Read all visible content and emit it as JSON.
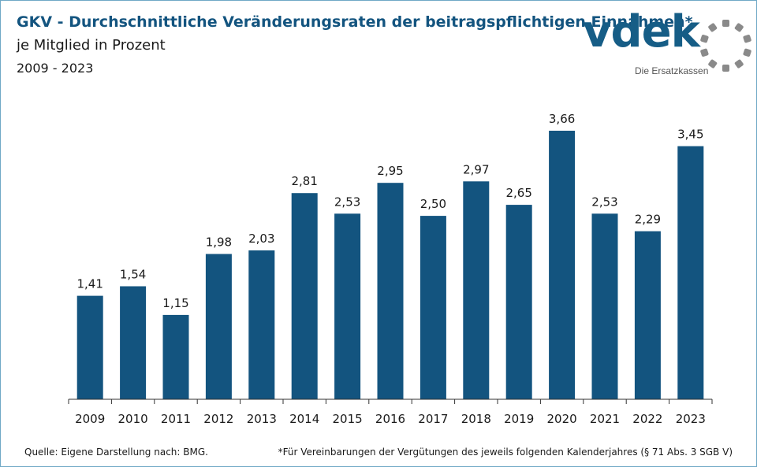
{
  "header": {
    "title": "GKV - Durchschnittliche Veränderungsraten der beitragspflichtigen Einnahmen*",
    "subtitle": "je Mitglied in Prozent",
    "period": "2009 - 2023"
  },
  "logo": {
    "wordmark": "vdek",
    "tagline": "Die Ersatzkassen",
    "icon": "dotted-ring-icon"
  },
  "chart_data": {
    "type": "bar",
    "categories": [
      "2009",
      "2010",
      "2011",
      "2012",
      "2013",
      "2014",
      "2015",
      "2016",
      "2017",
      "2018",
      "2019",
      "2020",
      "2021",
      "2022",
      "2023"
    ],
    "values": [
      1.41,
      1.54,
      1.15,
      1.98,
      2.03,
      2.81,
      2.53,
      2.95,
      2.5,
      2.97,
      2.65,
      3.66,
      2.53,
      2.29,
      3.45
    ],
    "value_labels": [
      "1,41",
      "1,54",
      "1,15",
      "1,98",
      "2,03",
      "2,81",
      "2,53",
      "2,95",
      "2,50",
      "2,97",
      "2,65",
      "3,66",
      "2,53",
      "2,29",
      "3,45"
    ],
    "ylim": [
      0,
      4
    ],
    "grid": false,
    "bar_color": "#13547f"
  },
  "footer": {
    "source": "Quelle: Eigene Darstellung nach: BMG.",
    "note": "*Für Vereinbarungen der Vergütungen des jeweils folgenden Kalenderjahres (§ 71 Abs. 3 SGB V)"
  }
}
